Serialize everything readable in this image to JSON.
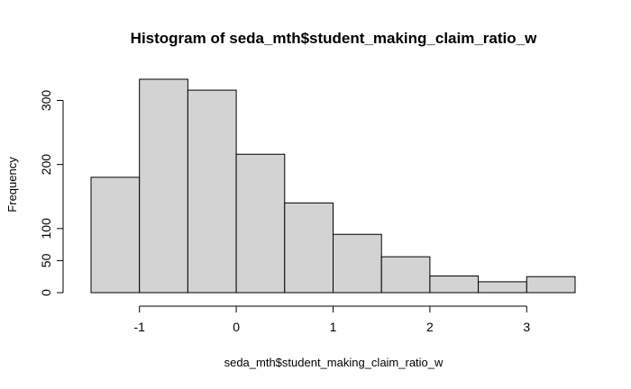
{
  "chart_data": {
    "type": "bar",
    "title": "Histogram of seda_mth$student_making_claim_ratio_w",
    "xlabel": "seda_mth$student_making_claim_ratio_w",
    "ylabel": "Frequency",
    "bins": [
      {
        "start": -1.5,
        "end": -1.0,
        "value": 180
      },
      {
        "start": -1.0,
        "end": -0.5,
        "value": 333
      },
      {
        "start": -0.5,
        "end": 0.0,
        "value": 316
      },
      {
        "start": 0.0,
        "end": 0.5,
        "value": 216
      },
      {
        "start": 0.5,
        "end": 1.0,
        "value": 140
      },
      {
        "start": 1.0,
        "end": 1.5,
        "value": 91
      },
      {
        "start": 1.5,
        "end": 2.0,
        "value": 56
      },
      {
        "start": 2.0,
        "end": 2.5,
        "value": 26
      },
      {
        "start": 2.5,
        "end": 3.0,
        "value": 17
      },
      {
        "start": 3.0,
        "end": 3.5,
        "value": 25
      }
    ],
    "x_ticks": [
      -1,
      0,
      1,
      2,
      3
    ],
    "x_tick_labels": [
      "-1",
      "0",
      "1",
      "2",
      "3"
    ],
    "y_ticks": [
      0,
      50,
      100,
      200,
      300
    ],
    "y_tick_labels": [
      "0",
      "50",
      "100",
      "200",
      "300"
    ],
    "xlim": [
      -1.5,
      3.5
    ],
    "ylim": [
      0,
      333
    ],
    "grid": false,
    "bar_fill": "#d3d3d3",
    "bar_stroke": "#000000"
  }
}
